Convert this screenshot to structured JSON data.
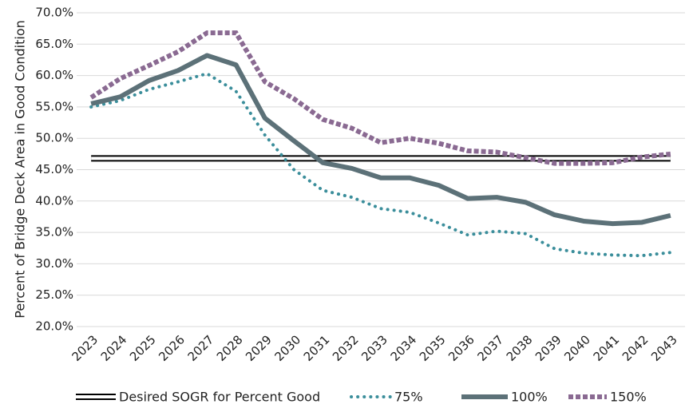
{
  "chart_data": {
    "type": "line",
    "y_label": "Percent of Bridge Deck Area in Good Condition",
    "categories": [
      "2023",
      "2024",
      "2025",
      "2026",
      "2027",
      "2028",
      "2029",
      "2030",
      "2031",
      "2032",
      "2033",
      "2034",
      "2035",
      "2036",
      "2037",
      "2038",
      "2039",
      "2040",
      "2041",
      "2042",
      "2043"
    ],
    "series": [
      {
        "name": "Desired SOGR for Percent Good",
        "color": "#000000",
        "style": "double",
        "values": [
          46.8,
          46.8,
          46.8,
          46.8,
          46.8,
          46.8,
          46.8,
          46.8,
          46.8,
          46.8,
          46.8,
          46.8,
          46.8,
          46.8,
          46.8,
          46.8,
          46.8,
          46.8,
          46.8,
          46.8,
          46.8
        ]
      },
      {
        "name": "75%",
        "color": "#3b8e9b",
        "style": "dotted",
        "values": [
          55.0,
          56.0,
          57.8,
          59.0,
          60.3,
          57.5,
          50.5,
          45.0,
          41.7,
          40.6,
          38.8,
          38.2,
          36.5,
          34.6,
          35.2,
          34.8,
          32.4,
          31.7,
          31.4,
          31.3,
          31.8
        ]
      },
      {
        "name": "100%",
        "color": "#5c7178",
        "style": "solid",
        "values": [
          55.5,
          56.6,
          59.2,
          60.8,
          63.2,
          61.7,
          53.2,
          49.6,
          46.1,
          45.2,
          43.7,
          43.7,
          42.5,
          40.4,
          40.6,
          39.8,
          37.8,
          36.8,
          36.4,
          36.6,
          37.7
        ]
      },
      {
        "name": "150%",
        "color": "#8a6a92",
        "style": "dashed",
        "values": [
          56.5,
          59.5,
          61.6,
          63.8,
          66.8,
          66.8,
          59.0,
          56.3,
          53.0,
          51.6,
          49.3,
          50.0,
          49.2,
          48.0,
          47.8,
          46.9,
          46.0,
          46.0,
          46.1,
          47.0,
          47.5
        ]
      }
    ],
    "ylim": [
      20,
      70
    ],
    "yticks": [
      {
        "value": 20,
        "label": "20.0%"
      },
      {
        "value": 25,
        "label": "25.0%"
      },
      {
        "value": 30,
        "label": "30.0%"
      },
      {
        "value": 35,
        "label": "35.0%"
      },
      {
        "value": 40,
        "label": "40.0%"
      },
      {
        "value": 45,
        "label": "45.0%"
      },
      {
        "value": 50,
        "label": "50.0%"
      },
      {
        "value": 55,
        "label": "55.0%"
      },
      {
        "value": 60,
        "label": "60.0%"
      },
      {
        "value": 65,
        "label": "65.0%"
      },
      {
        "value": 70,
        "label": "70.0%"
      }
    ],
    "grid": true,
    "legend": "bottom"
  }
}
